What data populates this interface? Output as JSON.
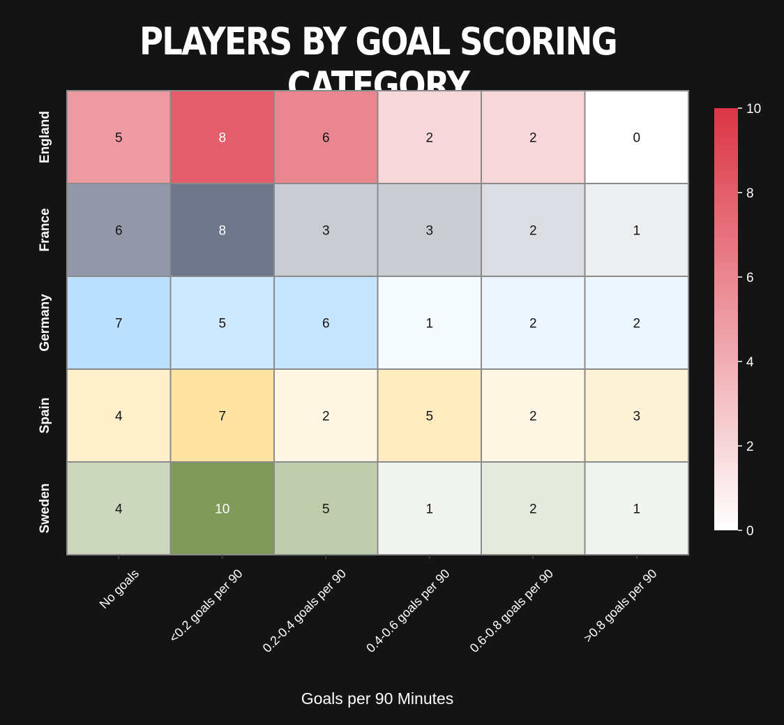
{
  "chart_data": {
    "type": "heatmap",
    "title": "PLAYERS BY GOAL SCORING CATEGORY",
    "xlabel": "Goals per 90 Minutes",
    "ylabel": "",
    "rows": [
      "England",
      "France",
      "Germany",
      "Spain",
      "Sweden"
    ],
    "columns": [
      "No goals",
      "<0.2 goals per 90",
      "0.2-0.4 goals per 90",
      "0.4-0.6 goals per 90",
      "0.6-0.8 goals per 90",
      ">0.8 goals per 90"
    ],
    "values": [
      [
        5,
        8,
        6,
        2,
        2,
        0
      ],
      [
        6,
        8,
        3,
        3,
        2,
        1
      ],
      [
        7,
        5,
        6,
        1,
        2,
        2
      ],
      [
        4,
        7,
        2,
        5,
        2,
        3
      ],
      [
        4,
        10,
        5,
        1,
        2,
        1
      ]
    ],
    "row_colors": [
      "#dc3545",
      "#4a546c",
      "#9fd3ff",
      "#ffd77a",
      "#7f9a5a"
    ],
    "colorbar": {
      "range": [
        0,
        10
      ],
      "ticks": [
        "0",
        "2",
        "4",
        "6",
        "8",
        "10"
      ],
      "color_low": "#ffffff",
      "color_high": "#dc3545"
    },
    "background": "#141414",
    "grid_line_color": "#8a8a8a"
  }
}
